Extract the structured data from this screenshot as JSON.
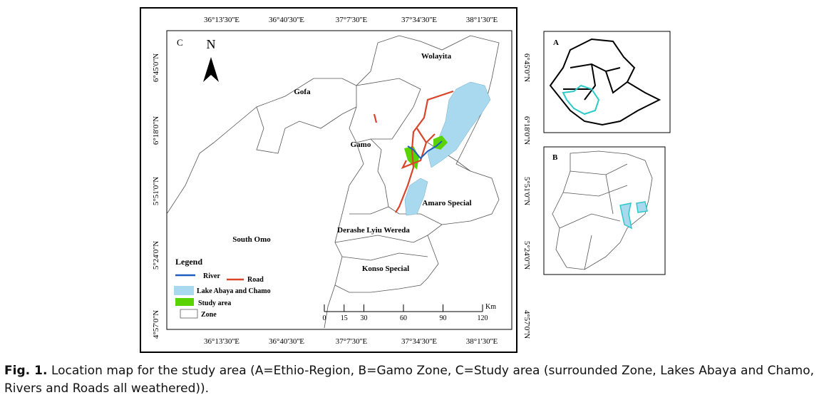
{
  "figure": {
    "panel_label": "C",
    "north": "N",
    "longitudes": [
      "36°13'30''E",
      "36°40'30''E",
      "37°7'30''E",
      "37°34'30''E",
      "38°1'30''E"
    ],
    "latitudes": [
      "6°45'0''N",
      "6°18'0''N",
      "5°51'0''N",
      "5°24'0''N",
      "4°57'0''N"
    ],
    "zones": [
      "Wolayita",
      "Gofa",
      "Gamo",
      "Amaro Special",
      "Derashe Lyiu Wereda",
      "South Omo",
      "Konso Special"
    ],
    "legend": {
      "title": "Legend",
      "items": [
        "River",
        "Road",
        "Lake Abaya and Chamo",
        "Study area",
        "Zone"
      ]
    },
    "scale": {
      "ticks": [
        0,
        15,
        30,
        60,
        90,
        120
      ],
      "unit": "Km"
    },
    "insets": [
      "A",
      "B"
    ]
  },
  "caption": {
    "label": "Fig. 1.",
    "text": "Location map for the study area (A=Ethio-Region, B=Gamo Zone, C=Study area (surrounded Zone, Lakes Abaya and Chamo, Rivers and Roads all weathered))."
  }
}
